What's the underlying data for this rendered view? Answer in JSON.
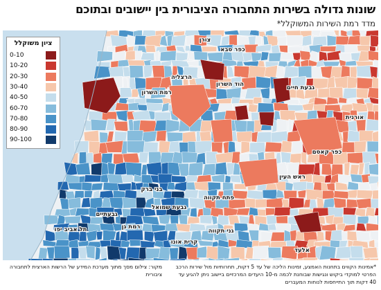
{
  "title": "שונות גדולה בשירות התחבורה הציבורית בין יישובים ובתוכם",
  "subtitle": "מדד רמת השירות המשוקלל*",
  "legend": {
    "title": "ציון משוקלל",
    "items": [
      {
        "label": "0-10",
        "color": "#8c1a1a"
      },
      {
        "label": "10-20",
        "color": "#c9382f"
      },
      {
        "label": "20-30",
        "color": "#ec7a5e"
      },
      {
        "label": "30-40",
        "color": "#f6c7ab"
      },
      {
        "label": "40-50",
        "color": "#c4ddec"
      },
      {
        "label": "60-70",
        "color": "#86bcdc"
      },
      {
        "label": "70-80",
        "color": "#4a93c8"
      },
      {
        "label": "80-90",
        "color": "#2368b0"
      },
      {
        "label": "90-100",
        "color": "#113a6b"
      }
    ]
  },
  "places": {
    "tzoran": "צורן",
    "kfar_saba": "כפר סבא",
    "herzliya": "הרצליה",
    "ramat_hasharon": "רמת השרון",
    "hod_hasharon": "הוד השרון",
    "givat_haim": "גבעת חיים",
    "oranit": "אורנית",
    "kafr_qasim": "כפר קאסם",
    "rosh_haayin": "ראש העין",
    "bnei_brak": "בני ברק",
    "petah_tikva": "פתח תקווה",
    "givat_shmuel": "גבעת שמואל",
    "givatayim": "גבעתיים",
    "ramat_gan": "רמת גן",
    "tel_aviv": "תל אביב יפו",
    "kiryat_ono": "קרית אונו",
    "ganei_tikva": "גני תקווה",
    "elad": "אלעד"
  },
  "footnote": "*אמינות הקווים בתחנות האמצע, זמינות הליכה של עד 5 דקות, תחרותיות מול שירות הרכב הפרטי למוקדי ביקוש ונגישות שבוחנת לכמה מ-10 היעדים המרכזיים ביישוב ניתן להגיע עד 40 דקות תוך התייחסות לנוחות המעברים",
  "source": "מקור: צילום מסך מתוך מערכת המידע של הרשות הארצית לתחבורה ציבורית"
}
